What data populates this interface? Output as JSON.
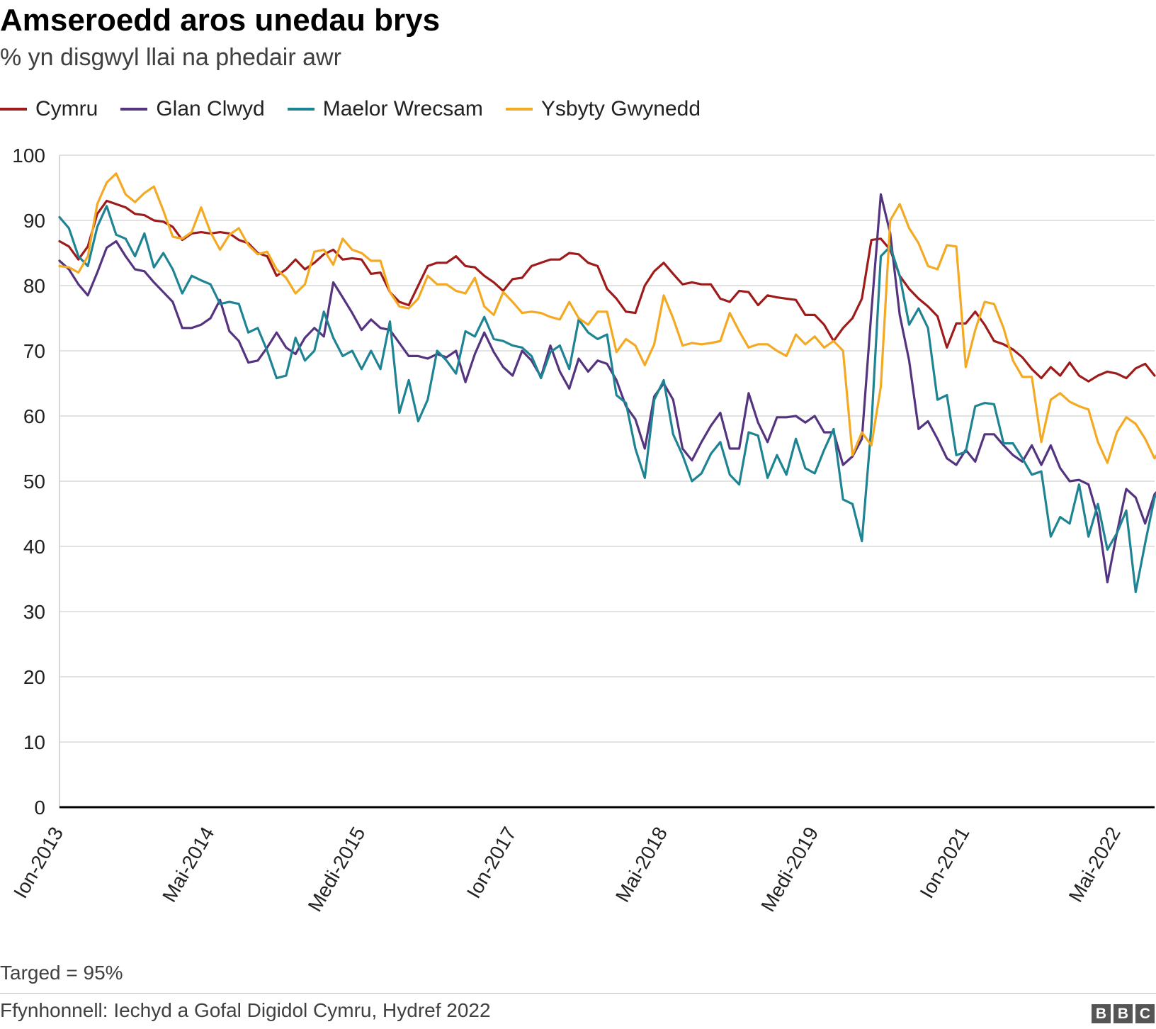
{
  "title": "Amseroedd aros unedau brys",
  "subtitle": "% yn disgwyl llai na phedair awr",
  "note": "Targed = 95%",
  "source": "Ffynhonnell: Iechyd a Gofal Digidol Cymru, Hydref 2022",
  "logo_letters": [
    "B",
    "B",
    "C"
  ],
  "chart_data": {
    "type": "line",
    "title": "Amseroedd aros unedau brys",
    "subtitle": "% yn disgwyl llai na phedair awr",
    "ylim": [
      0,
      100
    ],
    "y_ticks": [
      0,
      10,
      20,
      30,
      40,
      50,
      60,
      70,
      80,
      90,
      100
    ],
    "x_tick_labels": [
      "Ion-2013",
      "Mai-2014",
      "Medi-2015",
      "Ion-2017",
      "Mai-2018",
      "Medi-2019",
      "Ion-2021",
      "Mai-2022"
    ],
    "x_start": "Ion-2013",
    "x_end": "Hyd-2022",
    "grid": true,
    "legend_position": "top-left",
    "series": [
      {
        "name": "Cymru",
        "color": "#9e1b1b",
        "values": [
          86.8,
          86,
          84,
          86,
          91,
          93,
          92.5,
          92,
          91,
          90.8,
          90,
          89.8,
          89,
          87,
          88,
          88.2,
          88,
          88.2,
          88,
          87,
          86.5,
          85,
          84.5,
          81.5,
          82.5,
          84,
          82.5,
          83.5,
          84.8,
          85.5,
          84,
          84.2,
          84,
          81.8,
          82,
          79,
          77.5,
          77,
          80,
          83,
          83.5,
          83.5,
          84.5,
          83,
          82.8,
          81.5,
          80.5,
          79.2,
          81,
          81.2,
          83,
          83.5,
          84,
          84,
          85,
          84.8,
          83.5,
          83,
          79.5,
          78,
          76,
          75.8,
          80,
          82.2,
          83.5,
          81.8,
          80.2,
          80.5,
          80.2,
          80.2,
          78,
          77.5,
          79.2,
          79,
          77,
          78.5,
          78.2,
          78,
          77.8,
          75.5,
          75.5,
          74,
          71.5,
          73.5,
          75,
          78,
          87,
          87.2,
          85.5,
          81.5,
          79.5,
          78,
          76.8,
          75.3,
          70.5,
          74.2,
          74.2,
          76,
          74,
          71.5,
          71,
          70.2,
          69,
          67.2,
          65.8,
          67.5,
          66.2,
          68.2,
          66.2,
          65.3,
          66.2,
          66.8,
          66.5,
          65.8,
          67.3,
          68,
          66.2
        ]
      },
      {
        "name": "Glan Clwyd",
        "color": "#55347f",
        "values": [
          83.8,
          82.5,
          80.2,
          78.5,
          82,
          85.8,
          86.8,
          84.5,
          82.5,
          82.2,
          80.5,
          79,
          77.5,
          73.5,
          73.5,
          74,
          75,
          77.8,
          73,
          71.5,
          68.2,
          68.5,
          70.5,
          72.8,
          70.5,
          69.5,
          72,
          73.5,
          72.2,
          80.5,
          78.2,
          75.8,
          73.2,
          74.8,
          73.5,
          73.2,
          71.2,
          69.2,
          69.2,
          68.8,
          69.5,
          69,
          70,
          65.2,
          69.5,
          72.8,
          69.8,
          67.5,
          66.2,
          70,
          68.5,
          66,
          70.8,
          66.8,
          64.2,
          68.8,
          66.8,
          68.5,
          68,
          65.5,
          61.5,
          59.5,
          55,
          63,
          65,
          62.5,
          55,
          53.2,
          56,
          58.5,
          60.5,
          55,
          55,
          63.5,
          59,
          56,
          59.8,
          59.8,
          60,
          59,
          60,
          57.5,
          57.5,
          52.5,
          53.8,
          56.5,
          76,
          94,
          88,
          75.5,
          68.5,
          58,
          59.2,
          56.5,
          53.5,
          52.5,
          54.8,
          53,
          57.2,
          57.2,
          55.5,
          54,
          53,
          55.5,
          52.5,
          55.5,
          52,
          50,
          50.2,
          49.5,
          44.5,
          34.5,
          42,
          48.8,
          47.5,
          43.5,
          48,
          49.5
        ]
      },
      {
        "name": "Maelor Wrecsam",
        "color": "#1e8493",
        "values": [
          90.5,
          88.8,
          84.5,
          83,
          89,
          92.2,
          87.8,
          87.2,
          84.5,
          88,
          82.8,
          85,
          82.5,
          78.8,
          81.5,
          80.8,
          80.2,
          77.2,
          77.5,
          77.2,
          72.8,
          73.5,
          70,
          65.8,
          66.2,
          72,
          68.5,
          70,
          76,
          72,
          69.2,
          70,
          67.2,
          70,
          67.2,
          74.5,
          60.5,
          65.5,
          59.2,
          62.5,
          70,
          68.5,
          66.5,
          73,
          72.2,
          75.2,
          71.8,
          71.5,
          70.8,
          70.5,
          69.2,
          65.8,
          69.8,
          70.8,
          67.2,
          74.8,
          72.8,
          71.8,
          72.5,
          63.2,
          62,
          55,
          50.5,
          62.5,
          65.5,
          57.2,
          54,
          50,
          51.2,
          54.2,
          56,
          51,
          49.5,
          57.5,
          57,
          50.5,
          54,
          51,
          56.5,
          52,
          51.2,
          54.8,
          58,
          47.2,
          46.5,
          40.8,
          58.5,
          84.5,
          86,
          81.5,
          74,
          76.5,
          73.5,
          62.5,
          63.2,
          54,
          54.5,
          61.5,
          62,
          61.8,
          55.8,
          55.8,
          53.5,
          51,
          51.5,
          41.5,
          44.5,
          43.5,
          49.5,
          41.5,
          46.5,
          39.5,
          42,
          45.5,
          33,
          40.5,
          47.5,
          50.2
        ]
      },
      {
        "name": "Ysbyty Gwynedd",
        "color": "#f4a922",
        "values": [
          83,
          82.8,
          82,
          84.5,
          92.5,
          95.8,
          97.2,
          94,
          92.8,
          94.2,
          95.2,
          91.5,
          87.5,
          87.2,
          88.2,
          92,
          88.2,
          85.5,
          87.8,
          88.8,
          86.2,
          84.8,
          85.2,
          82.5,
          81.2,
          78.8,
          80.2,
          85.2,
          85.5,
          83.2,
          87.2,
          85.5,
          85,
          83.8,
          83.8,
          79,
          76.8,
          76.5,
          78,
          81.5,
          80.2,
          80.2,
          79.2,
          78.8,
          81.2,
          76.8,
          75.5,
          79,
          77.5,
          75.8,
          76,
          75.8,
          75.2,
          74.8,
          77.5,
          75,
          74,
          76,
          76,
          69.8,
          71.8,
          70.8,
          67.8,
          71,
          78.5,
          75,
          70.8,
          71.2,
          71,
          71.2,
          71.5,
          75.8,
          73,
          70.5,
          71,
          71,
          70,
          69.2,
          72.5,
          71,
          72.2,
          70.5,
          71.5,
          70,
          54,
          57.5,
          55.5,
          64.5,
          90,
          92.5,
          88.8,
          86.5,
          83,
          82.5,
          86.2,
          86,
          67.5,
          73.2,
          77.5,
          77.2,
          73.5,
          68.5,
          66,
          66,
          56,
          62.5,
          63.5,
          62.2,
          61.5,
          61,
          56,
          52.8,
          57.5,
          59.8,
          58.8,
          56.5,
          53.5,
          55.8,
          52
        ]
      }
    ]
  }
}
